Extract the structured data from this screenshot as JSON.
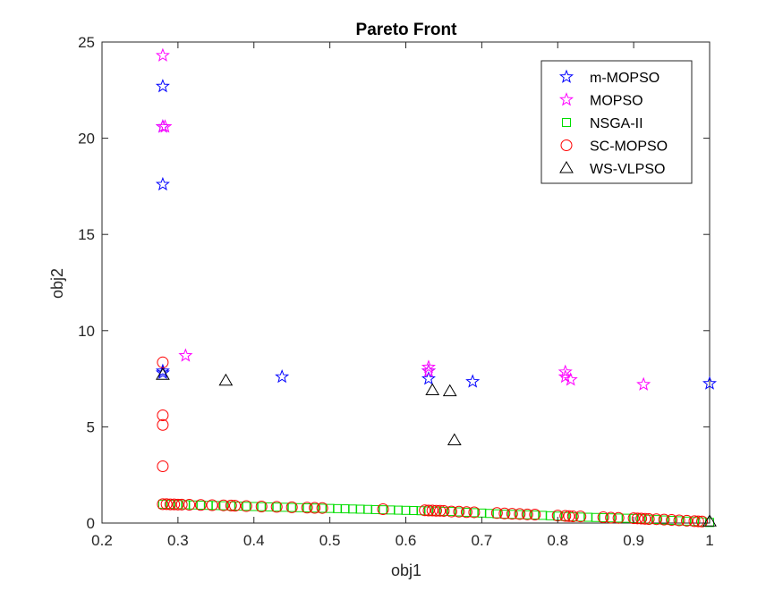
{
  "chart_data": {
    "type": "scatter",
    "title": "Pareto Front",
    "xlabel": "obj1",
    "ylabel": "obj2",
    "xlim": [
      0.2,
      1
    ],
    "ylim": [
      0,
      25
    ],
    "xticks": [
      "0.2",
      "0.3",
      "0.4",
      "0.5",
      "0.6",
      "0.7",
      "0.8",
      "0.9",
      "1"
    ],
    "yticks": [
      "0",
      "5",
      "10",
      "15",
      "20",
      "25"
    ],
    "grid": false,
    "legend_position": "top-right",
    "series": [
      {
        "name": "m-MOPSO",
        "marker": "star",
        "color": "#0000ff",
        "points": [
          [
            0.28,
            22.7
          ],
          [
            0.28,
            20.6
          ],
          [
            0.28,
            17.6
          ],
          [
            0.28,
            7.9
          ],
          [
            0.28,
            7.8
          ],
          [
            0.437,
            7.6
          ],
          [
            0.63,
            7.5
          ],
          [
            0.63,
            7.9
          ],
          [
            0.688,
            7.35
          ],
          [
            1.0,
            7.25
          ]
        ]
      },
      {
        "name": "MOPSO",
        "marker": "star",
        "color": "#ff00ff",
        "points": [
          [
            0.28,
            24.3
          ],
          [
            0.28,
            20.6
          ],
          [
            0.283,
            20.6
          ],
          [
            0.31,
            8.7
          ],
          [
            0.63,
            8.1
          ],
          [
            0.63,
            7.9
          ],
          [
            0.81,
            7.85
          ],
          [
            0.81,
            7.6
          ],
          [
            0.817,
            7.45
          ],
          [
            0.913,
            7.2
          ]
        ]
      },
      {
        "name": "NSGA-II",
        "marker": "square",
        "color": "#00dd00",
        "points": [
          [
            0.28,
            0.98
          ],
          [
            0.29,
            0.97
          ],
          [
            0.3,
            0.96
          ],
          [
            0.31,
            0.95
          ],
          [
            0.32,
            0.94
          ],
          [
            0.33,
            0.93
          ],
          [
            0.34,
            0.92
          ],
          [
            0.35,
            0.91
          ],
          [
            0.36,
            0.9
          ],
          [
            0.37,
            0.89
          ],
          [
            0.38,
            0.88
          ],
          [
            0.39,
            0.87
          ],
          [
            0.4,
            0.86
          ],
          [
            0.41,
            0.85
          ],
          [
            0.42,
            0.84
          ],
          [
            0.43,
            0.83
          ],
          [
            0.44,
            0.82
          ],
          [
            0.45,
            0.81
          ],
          [
            0.46,
            0.8
          ],
          [
            0.47,
            0.79
          ],
          [
            0.48,
            0.78
          ],
          [
            0.49,
            0.77
          ],
          [
            0.5,
            0.76
          ],
          [
            0.51,
            0.75
          ],
          [
            0.52,
            0.74
          ],
          [
            0.53,
            0.73
          ],
          [
            0.54,
            0.72
          ],
          [
            0.55,
            0.71
          ],
          [
            0.56,
            0.7
          ],
          [
            0.57,
            0.69
          ],
          [
            0.58,
            0.68
          ],
          [
            0.59,
            0.67
          ],
          [
            0.6,
            0.66
          ],
          [
            0.61,
            0.65
          ],
          [
            0.62,
            0.64
          ],
          [
            0.63,
            0.63
          ],
          [
            0.64,
            0.62
          ],
          [
            0.65,
            0.61
          ],
          [
            0.66,
            0.6
          ],
          [
            0.67,
            0.58
          ],
          [
            0.68,
            0.56
          ],
          [
            0.69,
            0.54
          ],
          [
            0.7,
            0.52
          ],
          [
            0.71,
            0.5
          ],
          [
            0.72,
            0.48
          ],
          [
            0.73,
            0.46
          ],
          [
            0.74,
            0.45
          ],
          [
            0.75,
            0.44
          ],
          [
            0.76,
            0.43
          ],
          [
            0.77,
            0.42
          ],
          [
            0.78,
            0.4
          ],
          [
            0.79,
            0.38
          ],
          [
            0.8,
            0.36
          ],
          [
            0.81,
            0.34
          ],
          [
            0.82,
            0.32
          ],
          [
            0.83,
            0.31
          ],
          [
            0.84,
            0.3
          ],
          [
            0.85,
            0.29
          ],
          [
            0.86,
            0.28
          ],
          [
            0.87,
            0.27
          ],
          [
            0.88,
            0.26
          ],
          [
            0.89,
            0.25
          ],
          [
            0.9,
            0.24
          ],
          [
            0.91,
            0.22
          ],
          [
            0.92,
            0.2
          ],
          [
            0.93,
            0.18
          ],
          [
            0.94,
            0.16
          ],
          [
            0.95,
            0.14
          ],
          [
            0.96,
            0.12
          ],
          [
            0.97,
            0.1
          ],
          [
            0.98,
            0.08
          ],
          [
            0.99,
            0.06
          ],
          [
            1.0,
            0.03
          ]
        ]
      },
      {
        "name": "SC-MOPSO",
        "marker": "circle",
        "color": "#ff0000",
        "points": [
          [
            0.28,
            8.35
          ],
          [
            0.28,
            5.6
          ],
          [
            0.28,
            5.1
          ],
          [
            0.28,
            2.95
          ],
          [
            0.28,
            0.98
          ],
          [
            0.285,
            0.98
          ],
          [
            0.29,
            0.97
          ],
          [
            0.295,
            0.97
          ],
          [
            0.3,
            0.96
          ],
          [
            0.305,
            0.96
          ],
          [
            0.315,
            0.95
          ],
          [
            0.33,
            0.94
          ],
          [
            0.345,
            0.93
          ],
          [
            0.36,
            0.92
          ],
          [
            0.37,
            0.91
          ],
          [
            0.375,
            0.9
          ],
          [
            0.39,
            0.88
          ],
          [
            0.41,
            0.86
          ],
          [
            0.43,
            0.84
          ],
          [
            0.45,
            0.82
          ],
          [
            0.47,
            0.8
          ],
          [
            0.48,
            0.79
          ],
          [
            0.49,
            0.78
          ],
          [
            0.57,
            0.72
          ],
          [
            0.625,
            0.66
          ],
          [
            0.63,
            0.65
          ],
          [
            0.635,
            0.65
          ],
          [
            0.64,
            0.64
          ],
          [
            0.645,
            0.64
          ],
          [
            0.65,
            0.63
          ],
          [
            0.66,
            0.6
          ],
          [
            0.67,
            0.59
          ],
          [
            0.68,
            0.57
          ],
          [
            0.69,
            0.56
          ],
          [
            0.72,
            0.52
          ],
          [
            0.73,
            0.5
          ],
          [
            0.74,
            0.48
          ],
          [
            0.75,
            0.47
          ],
          [
            0.76,
            0.45
          ],
          [
            0.77,
            0.44
          ],
          [
            0.8,
            0.39
          ],
          [
            0.81,
            0.37
          ],
          [
            0.815,
            0.36
          ],
          [
            0.82,
            0.35
          ],
          [
            0.83,
            0.34
          ],
          [
            0.86,
            0.3
          ],
          [
            0.87,
            0.28
          ],
          [
            0.88,
            0.27
          ],
          [
            0.9,
            0.25
          ],
          [
            0.905,
            0.24
          ],
          [
            0.91,
            0.23
          ],
          [
            0.915,
            0.22
          ],
          [
            0.92,
            0.21
          ],
          [
            0.93,
            0.2
          ],
          [
            0.94,
            0.18
          ],
          [
            0.95,
            0.16
          ],
          [
            0.96,
            0.14
          ],
          [
            0.97,
            0.12
          ],
          [
            0.98,
            0.1
          ],
          [
            0.985,
            0.09
          ],
          [
            0.99,
            0.08
          ]
        ]
      },
      {
        "name": "WS-VLPSO",
        "marker": "triangle",
        "color": "#000000",
        "points": [
          [
            0.28,
            7.7
          ],
          [
            0.363,
            7.4
          ],
          [
            0.635,
            6.9
          ],
          [
            0.658,
            6.85
          ],
          [
            0.664,
            4.3
          ],
          [
            1.0,
            0.08
          ]
        ]
      }
    ]
  }
}
